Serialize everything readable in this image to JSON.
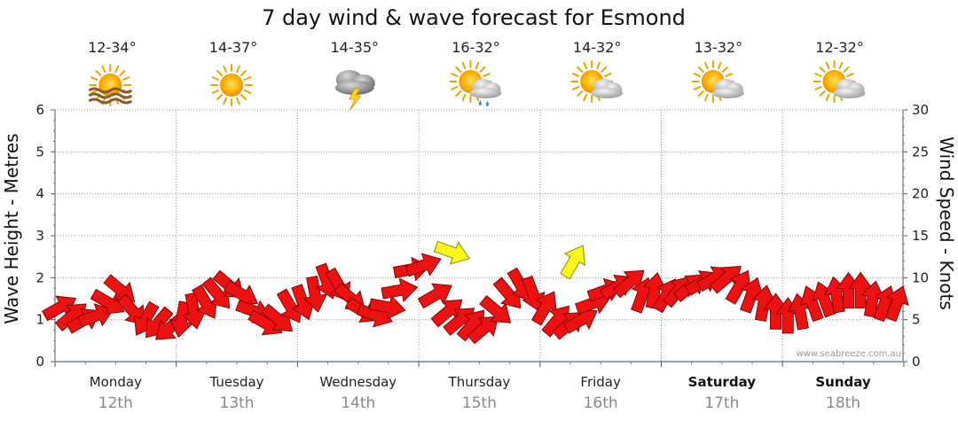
{
  "chart_data": {
    "type": "line",
    "title": "7 day wind & wave forecast for Esmond",
    "ylabel_left": "Wave Height - Metres",
    "ylabel_right": "Wind Speed - Knots",
    "ylim_left": [
      0,
      6
    ],
    "ylim_right": [
      0,
      30
    ],
    "yticks_left": [
      "0",
      "1",
      "2",
      "3",
      "4",
      "5",
      "6"
    ],
    "yticks_right": [
      "0",
      "5",
      "10",
      "15",
      "20",
      "25",
      "30"
    ],
    "grid": true,
    "watermark": "www.seabreeze.com.au",
    "days": [
      {
        "name": "Monday",
        "date": "12th",
        "temp": "12-34°",
        "icon": "sun-haze-icon",
        "bold": false
      },
      {
        "name": "Tuesday",
        "date": "13th",
        "temp": "14-37°",
        "icon": "sun-icon",
        "bold": false
      },
      {
        "name": "Wednesday",
        "date": "14th",
        "temp": "14-35°",
        "icon": "thunderstorm-icon",
        "bold": false
      },
      {
        "name": "Thursday",
        "date": "15th",
        "temp": "16-32°",
        "icon": "sun-cloud-rain-icon",
        "bold": false
      },
      {
        "name": "Friday",
        "date": "16th",
        "temp": "14-32°",
        "icon": "sun-cloud-icon",
        "bold": false
      },
      {
        "name": "Saturday",
        "date": "17th",
        "temp": "13-32°",
        "icon": "sun-cloud-icon",
        "bold": true
      },
      {
        "name": "Sunday",
        "date": "18th",
        "temp": "12-32°",
        "icon": "sun-cloud-icon",
        "bold": true
      }
    ],
    "wind_series": {
      "name": "Wind Speed",
      "unit": "knots",
      "x_days": [
        0.0,
        0.1,
        0.2,
        0.3,
        0.4,
        0.5,
        0.6,
        0.7,
        0.8,
        0.9,
        1.0,
        1.1,
        1.2,
        1.3,
        1.4,
        1.5,
        1.6,
        1.7,
        1.8,
        1.9,
        2.0,
        2.1,
        2.2,
        2.3,
        2.4,
        2.5,
        2.6,
        2.7,
        2.8,
        2.9,
        3.0,
        3.1,
        3.2,
        3.3,
        3.4,
        3.5,
        3.6,
        3.7,
        3.8,
        3.9,
        4.0,
        4.1,
        4.2,
        4.3,
        4.4,
        4.5,
        4.6,
        4.7,
        4.8,
        4.9,
        5.0,
        5.1,
        5.2,
        5.3,
        5.4,
        5.5,
        5.6,
        5.7,
        5.8,
        5.9,
        6.0,
        6.1,
        6.2,
        6.3,
        6.4,
        6.5,
        6.6,
        6.7,
        6.8,
        6.9
      ],
      "knots": [
        6.5,
        5.5,
        5,
        5.5,
        7,
        8.5,
        6,
        5,
        4.5,
        4,
        5,
        6,
        7,
        8,
        9,
        8,
        6,
        4.5,
        5,
        6.5,
        7,
        8,
        9.5,
        9,
        7.5,
        6,
        5.5,
        6.5,
        8.5,
        11,
        11.5,
        8,
        6,
        5,
        4.5,
        4,
        6,
        8,
        9,
        8,
        6.5,
        5,
        4.5,
        5,
        7,
        8.5,
        9,
        9.5,
        8,
        8.5,
        8,
        8.5,
        9,
        9.5,
        10,
        10,
        9,
        8,
        7,
        6,
        5.5,
        6,
        7,
        7.5,
        8,
        8.5,
        8.5,
        7.5,
        7,
        7
      ],
      "direction_deg": [
        330,
        320,
        330,
        340,
        30,
        40,
        50,
        120,
        130,
        140,
        100,
        80,
        60,
        50,
        40,
        30,
        20,
        30,
        40,
        60,
        70,
        80,
        70,
        60,
        40,
        30,
        20,
        10,
        350,
        350,
        340,
        330,
        320,
        320,
        310,
        320,
        40,
        50,
        60,
        70,
        300,
        310,
        320,
        330,
        340,
        340,
        330,
        320,
        290,
        280,
        300,
        310,
        320,
        330,
        330,
        320,
        300,
        290,
        280,
        270,
        270,
        260,
        250,
        250,
        260,
        270,
        270,
        280,
        290,
        290
      ]
    },
    "wave_series": {
      "name": "Wave Height",
      "unit": "m",
      "x_days": [
        3.28,
        4.28
      ],
      "metres": [
        2.6,
        2.4
      ],
      "direction_deg": [
        20,
        300
      ]
    }
  }
}
